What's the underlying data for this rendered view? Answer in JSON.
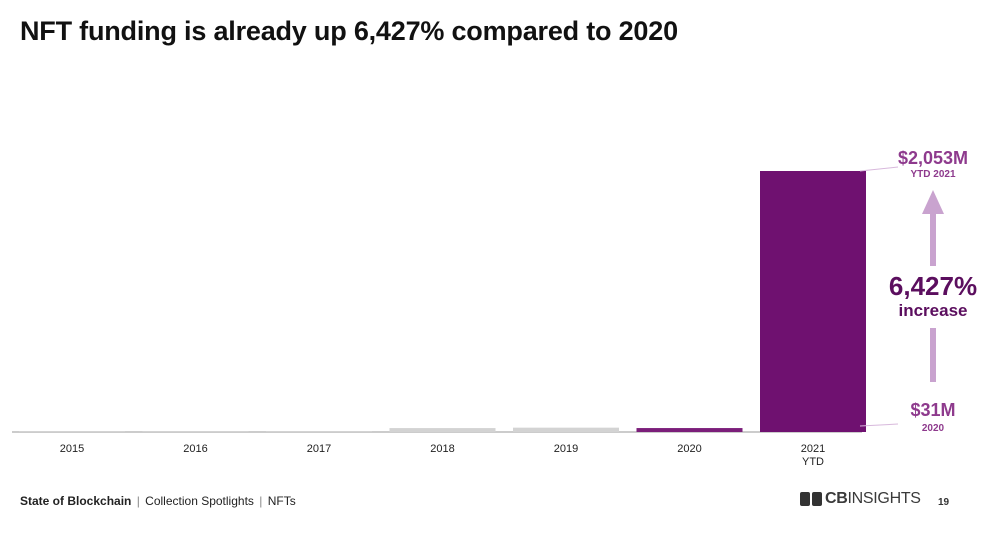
{
  "page": {
    "title": "NFT funding is already up 6,427% compared to 2020"
  },
  "chart_data": {
    "type": "bar",
    "categories": [
      "2015",
      "2016",
      "2017",
      "2018",
      "2019",
      "2020",
      "2021\nYTD"
    ],
    "values": [
      1,
      1,
      1,
      31,
      34,
      31,
      2053
    ],
    "bar_colors": [
      "#d3d3d3",
      "#d3d3d3",
      "#d3d3d3",
      "#d3d3d3",
      "#d3d3d3",
      "#7b1e7a",
      "#6f1170"
    ],
    "ylim": [
      0,
      2053
    ],
    "grid": false,
    "annotations": {
      "top_value": "$2,053M",
      "top_label": "YTD 2021",
      "bottom_value": "$31M",
      "bottom_label": "2020",
      "increase_value": "6,427%",
      "increase_label": "increase"
    },
    "colors": {
      "accent": "#6f1170",
      "annotation": "#8e3a8d",
      "arrow": "#c9a3cf",
      "axis": "#999999"
    }
  },
  "footer": {
    "section": "State of Blockchain",
    "crumb1": "Collection Spotlights",
    "crumb2": "NFTs",
    "separator": "|"
  },
  "brand": {
    "logo_bold": "CB",
    "logo_rest": "INSIGHTS",
    "icon": "cbinsights-logo-icon"
  },
  "page_number": "19"
}
